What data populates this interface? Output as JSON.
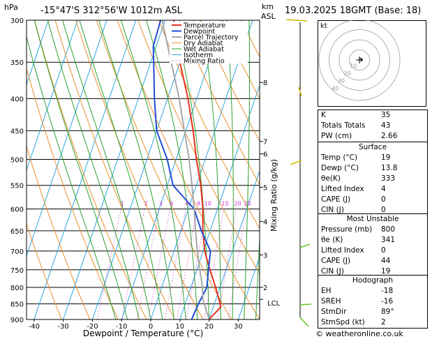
{
  "header": {
    "pressure_unit": "hPa",
    "location": "-15°47'S  312°56'W  1012m  ASL",
    "height_unit_km": "km",
    "height_unit_asl": "ASL",
    "valid_time": "19.03.2025  18GMT  (Base: 18)"
  },
  "footer": {
    "copyright": "© weatheronline.co.uk"
  },
  "chart_data": {
    "type": "line",
    "title": "",
    "xlabel": "Dewpoint / Temperature (°C)",
    "ylabel": "hPa",
    "right_label": "Mixing Ratio (g/kg)",
    "ylim": [
      900,
      300
    ],
    "xlim": [
      -45,
      38
    ],
    "pressure_ticks": [
      "300",
      "350",
      "400",
      "450",
      "500",
      "550",
      "600",
      "650",
      "700",
      "750",
      "800",
      "850",
      "900"
    ],
    "pressure_values": [
      300,
      350,
      400,
      450,
      500,
      550,
      600,
      650,
      700,
      750,
      800,
      850,
      900
    ],
    "temp_ticks": [
      "-40",
      "-30",
      "-20",
      "-10",
      "0",
      "10",
      "20",
      "30"
    ],
    "temp_values": [
      -40,
      -30,
      -20,
      -10,
      0,
      10,
      20,
      30
    ],
    "km_ticks": [
      {
        "label": "8",
        "p": 377
      },
      {
        "label": "7",
        "p": 468
      },
      {
        "label": "6",
        "p": 490
      },
      {
        "label": "5",
        "p": 554
      },
      {
        "label": "4",
        "p": 628
      },
      {
        "label": "3",
        "p": 710
      },
      {
        "label": "2",
        "p": 800
      },
      {
        "label": "LCL",
        "p": 836
      }
    ],
    "mixing_ratio_labels": [
      "1",
      "2",
      "3",
      "4",
      "6",
      "8",
      "10",
      "15",
      "20",
      "25"
    ],
    "mixing_ratio_values": [
      1,
      2,
      3,
      4,
      6,
      8,
      10,
      15,
      20,
      25
    ],
    "legend": [
      "Temperature",
      "Dewpoint",
      "Parcel Trajectory",
      "Dry Adiabat",
      "Wet Adiabat",
      "Isotherm",
      "Mixing Ratio"
    ],
    "legend_placement": "top-left",
    "colors": {
      "temperature": "#e83020",
      "dewpoint": "#1f4ed8",
      "parcel": "#a8a8a8",
      "dry_adiabat": "#e8902c",
      "wet_adiabat": "#2ca02c",
      "isotherm": "#2aa6e0",
      "mixing_ratio": "#d02fd0"
    },
    "series": [
      {
        "name": "Temperature",
        "points": [
          {
            "p": 900,
            "t": 20.0
          },
          {
            "p": 860,
            "t": 22.5
          },
          {
            "p": 850,
            "t": 22.0
          },
          {
            "p": 800,
            "t": 18.5
          },
          {
            "p": 750,
            "t": 14.5
          },
          {
            "p": 700,
            "t": 10.5
          },
          {
            "p": 650,
            "t": 7.5
          },
          {
            "p": 600,
            "t": 5.0
          },
          {
            "p": 550,
            "t": 1.5
          },
          {
            "p": 500,
            "t": -3.0
          },
          {
            "p": 450,
            "t": -7.5
          },
          {
            "p": 400,
            "t": -13.0
          },
          {
            "p": 350,
            "t": -20.0
          },
          {
            "p": 300,
            "t": -27.0
          }
        ]
      },
      {
        "name": "Dewpoint",
        "points": [
          {
            "p": 900,
            "t": 14.0
          },
          {
            "p": 850,
            "t": 14.5
          },
          {
            "p": 800,
            "t": 15.5
          },
          {
            "p": 750,
            "t": 14.0
          },
          {
            "p": 700,
            "t": 12.5
          },
          {
            "p": 650,
            "t": 7.0
          },
          {
            "p": 600,
            "t": 2.0
          },
          {
            "p": 550,
            "t": -8.0
          },
          {
            "p": 500,
            "t": -13.0
          },
          {
            "p": 450,
            "t": -20.0
          },
          {
            "p": 400,
            "t": -24.5
          },
          {
            "p": 350,
            "t": -29.0
          },
          {
            "p": 330,
            "t": -31.0
          },
          {
            "p": 300,
            "t": -31.5
          }
        ]
      },
      {
        "name": "Parcel Trajectory",
        "points": [
          {
            "p": 900,
            "t": 20.0
          },
          {
            "p": 836,
            "t": 15.5
          },
          {
            "p": 800,
            "t": 14.0
          },
          {
            "p": 750,
            "t": 11.0
          },
          {
            "p": 700,
            "t": 8.0
          },
          {
            "p": 650,
            "t": 5.0
          },
          {
            "p": 600,
            "t": 2.0
          },
          {
            "p": 550,
            "t": -1.5
          },
          {
            "p": 500,
            "t": -5.5
          },
          {
            "p": 450,
            "t": -10.5
          },
          {
            "p": 400,
            "t": -16.0
          },
          {
            "p": 350,
            "t": -23.0
          },
          {
            "p": 300,
            "t": -31.0
          }
        ]
      }
    ]
  },
  "hodograph": {
    "unit_label": "kt",
    "ring_labels": [
      "10",
      "20",
      "30",
      "40"
    ]
  },
  "indices": {
    "rows": [
      {
        "label": "K",
        "value": "35"
      },
      {
        "label": "Totals Totals",
        "value": "43"
      },
      {
        "label": "PW (cm)",
        "value": "2.66"
      }
    ]
  },
  "surface": {
    "title": "Surface",
    "rows": [
      {
        "label": "Temp (°C)",
        "value": "19"
      },
      {
        "label": "Dewp (°C)",
        "value": "13.8"
      },
      {
        "label": "θe(K)",
        "value": "333"
      },
      {
        "label": "Lifted Index",
        "value": "4"
      },
      {
        "label": "CAPE (J)",
        "value": "0"
      },
      {
        "label": "CIN (J)",
        "value": "0"
      }
    ]
  },
  "most_unstable": {
    "title": "Most Unstable",
    "rows": [
      {
        "label": "Pressure (mb)",
        "value": "800"
      },
      {
        "label": "θe (K)",
        "value": "341"
      },
      {
        "label": "Lifted Index",
        "value": "0"
      },
      {
        "label": "CAPE (J)",
        "value": "44"
      },
      {
        "label": "CIN (J)",
        "value": "19"
      }
    ]
  },
  "hodograph_table": {
    "title": "Hodograph",
    "rows": [
      {
        "label": "EH",
        "value": "-18"
      },
      {
        "label": "SREH",
        "value": "-16"
      },
      {
        "label": "StmDir",
        "value": "89°"
      },
      {
        "label": "StmSpd (kt)",
        "value": "2"
      }
    ]
  }
}
